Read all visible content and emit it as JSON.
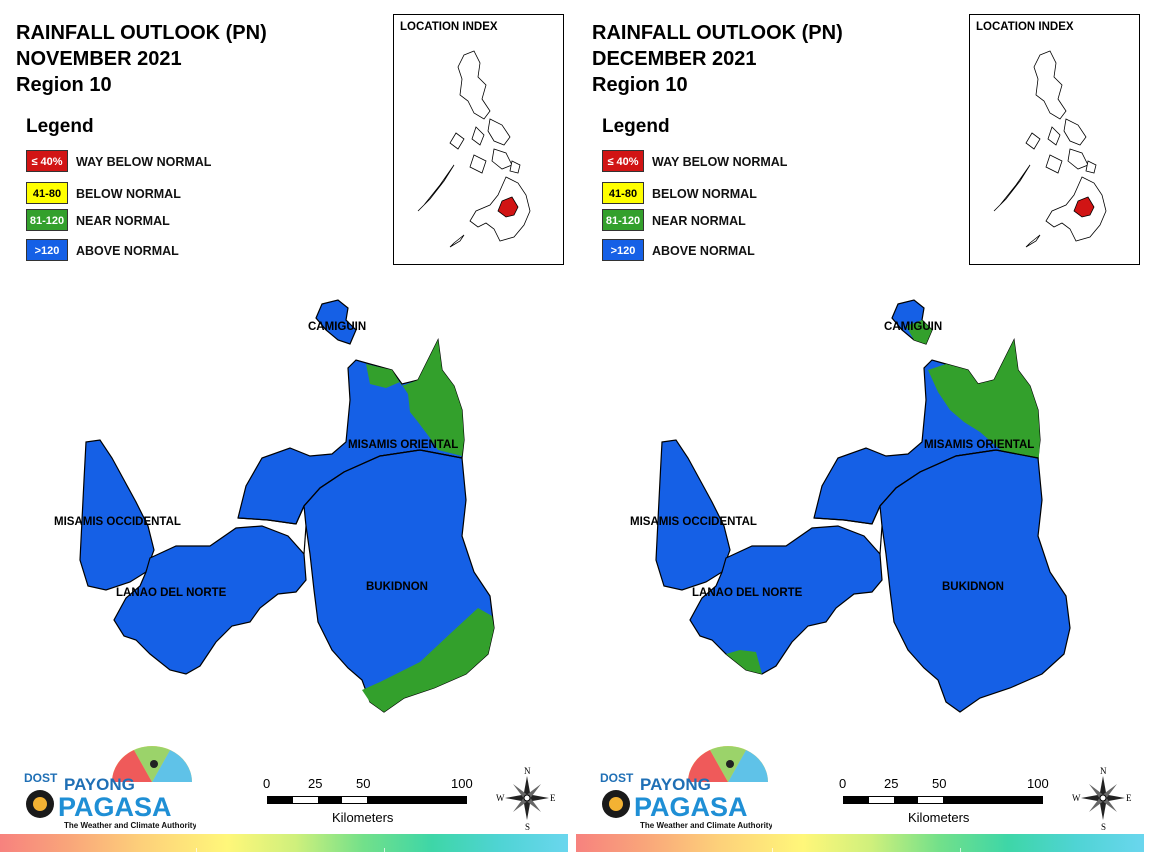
{
  "colors": {
    "way_below": "#d11414",
    "below": "#ffff00",
    "near": "#33a02c",
    "above": "#1560e6"
  },
  "legend": {
    "title": "Legend",
    "items": [
      {
        "range": "≤ 40%",
        "label": "WAY BELOW NORMAL"
      },
      {
        "range": "41-80",
        "label": "BELOW NORMAL"
      },
      {
        "range": "81-120",
        "label": "NEAR NORMAL"
      },
      {
        "range": ">120",
        "label": "ABOVE NORMAL"
      }
    ]
  },
  "location_index": {
    "title": "LOCATION INDEX"
  },
  "provinces": {
    "camiguin": "CAMIGUIN",
    "misamis_oriental": "MISAMIS ORIENTAL",
    "misamis_occidental": "MISAMIS OCCIDENTAL",
    "lanao_del_norte": "LANAO DEL NORTE",
    "bukidnon": "BUKIDNON"
  },
  "scale": {
    "ticks": [
      "0",
      "25",
      "50",
      "100"
    ],
    "unit": "Kilometers"
  },
  "compass": {
    "n": "N",
    "s": "S",
    "e": "E",
    "w": "W"
  },
  "logo": {
    "dost": "DOST",
    "payong": "PAYONG",
    "pagasa": "PAGASA",
    "tagline": "The Weather and Climate Authority"
  },
  "maps": [
    {
      "title_line1": "RAINFALL OUTLOOK (PN)",
      "title_line2": "NOVEMBER 2021",
      "title_line3": "Region 10",
      "categories": {
        "camiguin": "ABOVE NORMAL",
        "misamis_oriental": "ABOVE NORMAL with NEAR NORMAL in northeast",
        "misamis_occidental": "ABOVE NORMAL",
        "lanao_del_norte": "ABOVE NORMAL",
        "bukidnon": "ABOVE NORMAL with NEAR NORMAL in southeast"
      }
    },
    {
      "title_line1": "RAINFALL OUTLOOK (PN)",
      "title_line2": "DECEMBER 2021",
      "title_line3": "Region 10",
      "categories": {
        "camiguin": "ABOVE NORMAL with NEAR NORMAL in south",
        "misamis_oriental": "NEAR NORMAL with ABOVE NORMAL in west",
        "misamis_occidental": "ABOVE NORMAL",
        "lanao_del_norte": "ABOVE NORMAL with NEAR NORMAL in south tip",
        "bukidnon": "ABOVE NORMAL"
      }
    }
  ]
}
